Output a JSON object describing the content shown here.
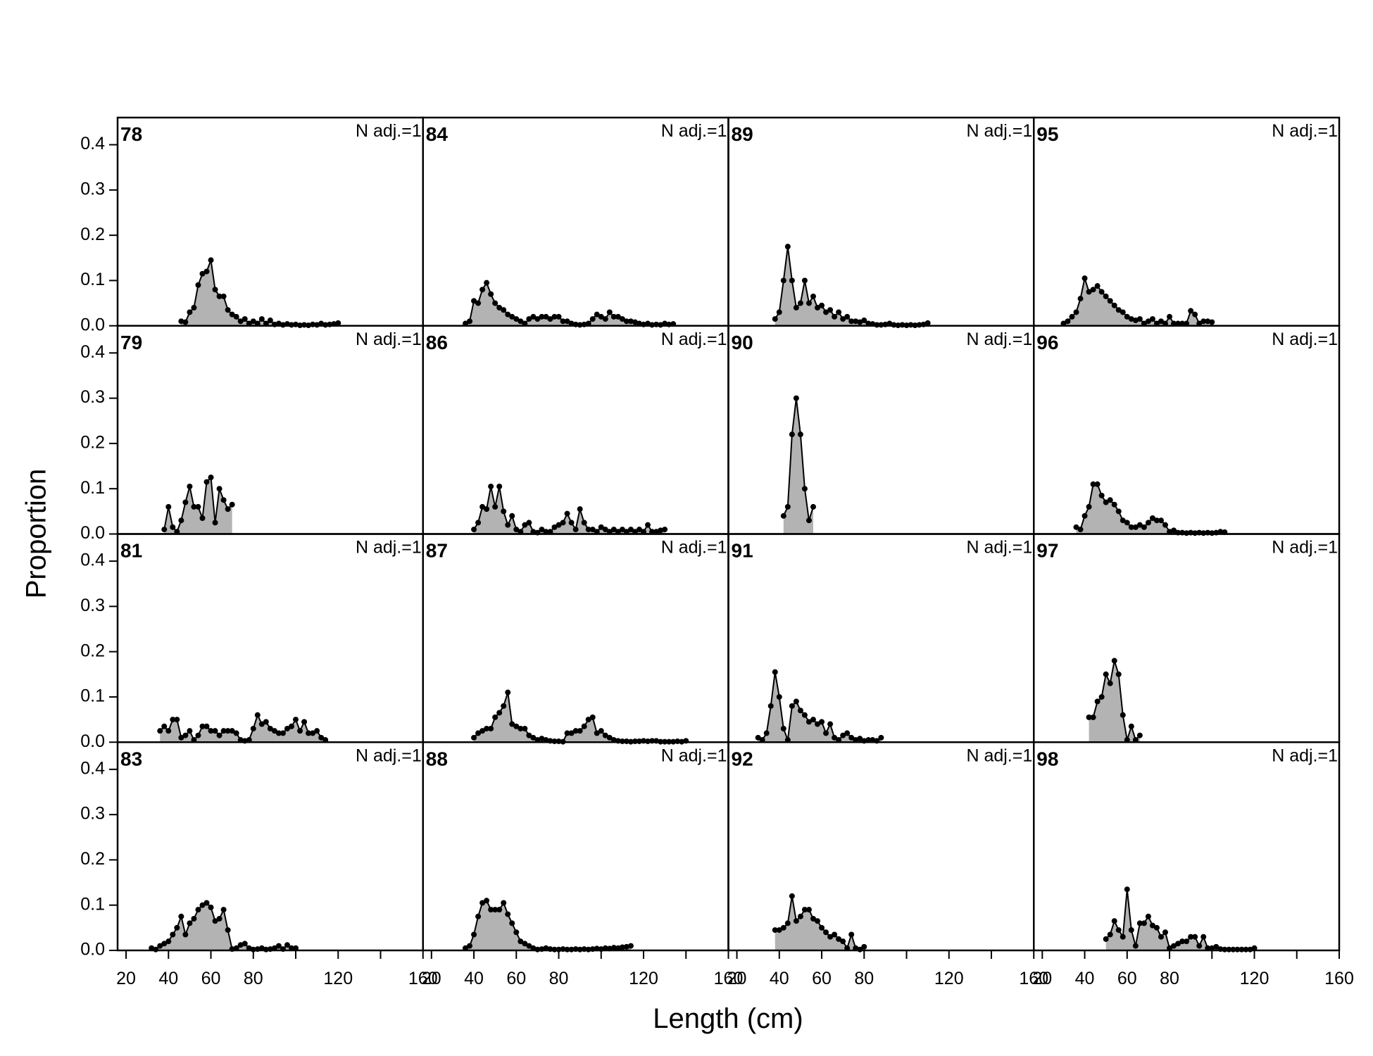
{
  "chart_data": {
    "type": "line",
    "xlabel": "Length (cm)",
    "ylabel": "Proportion",
    "xlim": [
      16,
      160
    ],
    "ylim": [
      0,
      0.46
    ],
    "xticks": [
      20,
      40,
      60,
      80,
      120,
      160
    ],
    "xticks_unlabeled": [
      100,
      140
    ],
    "yticks": [
      {
        "value": 0,
        "label": "0.0"
      },
      0.1,
      0.2,
      0.3,
      0.4
    ],
    "fill_color": "#b3b3b3",
    "line_color": "#000000",
    "panels": [
      {
        "label": "78",
        "annotation": "N adj.=1",
        "x": [
          46,
          48,
          50,
          52,
          54,
          56,
          58,
          60,
          62,
          64,
          66,
          68,
          70,
          72,
          74,
          76,
          78,
          80,
          82,
          84,
          86,
          88,
          90,
          92,
          94,
          96,
          98,
          100,
          102,
          104,
          106,
          108,
          110,
          112,
          114,
          116,
          118,
          120
        ],
        "values": [
          0.01,
          0.008,
          0.03,
          0.04,
          0.09,
          0.115,
          0.12,
          0.145,
          0.08,
          0.065,
          0.065,
          0.035,
          0.025,
          0.02,
          0.01,
          0.015,
          0.005,
          0.01,
          0.005,
          0.015,
          0.005,
          0.012,
          0.003,
          0.005,
          0.002,
          0.004,
          0.002,
          0.003,
          0.001,
          0.002,
          0.001,
          0.003,
          0.002,
          0.005,
          0.002,
          0.003,
          0.004,
          0.006
        ]
      },
      {
        "label": "79",
        "annotation": "N adj.=1",
        "x": [
          38,
          40,
          42,
          44,
          46,
          48,
          50,
          52,
          54,
          56,
          58,
          60,
          62,
          64,
          66,
          68,
          70
        ],
        "values": [
          0.01,
          0.06,
          0.015,
          0.005,
          0.03,
          0.07,
          0.105,
          0.06,
          0.06,
          0.035,
          0.115,
          0.125,
          0.025,
          0.1,
          0.075,
          0.055,
          0.065
        ]
      },
      {
        "label": "81",
        "annotation": "N adj.=1",
        "x": [
          36,
          38,
          40,
          42,
          44,
          46,
          48,
          50,
          52,
          54,
          56,
          58,
          60,
          62,
          64,
          66,
          68,
          70,
          72,
          74,
          76,
          78,
          80,
          82,
          84,
          86,
          88,
          90,
          92,
          94,
          96,
          98,
          100,
          102,
          104,
          106,
          108,
          110,
          112,
          114
        ],
        "values": [
          0.025,
          0.035,
          0.025,
          0.05,
          0.05,
          0.01,
          0.015,
          0.025,
          0.005,
          0.015,
          0.035,
          0.035,
          0.025,
          0.025,
          0.015,
          0.025,
          0.025,
          0.025,
          0.02,
          0.005,
          0.003,
          0.005,
          0.03,
          0.06,
          0.04,
          0.045,
          0.03,
          0.025,
          0.02,
          0.02,
          0.03,
          0.035,
          0.05,
          0.025,
          0.045,
          0.02,
          0.02,
          0.025,
          0.01,
          0.005
        ]
      },
      {
        "label": "83",
        "annotation": "N adj.=1",
        "x": [
          32,
          34,
          36,
          38,
          40,
          42,
          44,
          46,
          48,
          50,
          52,
          54,
          56,
          58,
          60,
          62,
          64,
          66,
          68,
          70,
          72,
          74,
          76,
          78,
          80,
          82,
          84,
          86,
          88,
          90,
          92,
          94,
          96,
          98,
          100
        ],
        "values": [
          0.005,
          0.002,
          0.01,
          0.015,
          0.02,
          0.035,
          0.05,
          0.075,
          0.035,
          0.06,
          0.07,
          0.09,
          0.1,
          0.105,
          0.095,
          0.065,
          0.07,
          0.09,
          0.045,
          0.003,
          0.005,
          0.012,
          0.015,
          0.005,
          0.002,
          0.003,
          0.005,
          0.002,
          0.003,
          0.005,
          0.01,
          0.003,
          0.012,
          0.005,
          0.005
        ]
      },
      {
        "label": "84",
        "annotation": "N adj.=1",
        "x": [
          36,
          38,
          40,
          42,
          44,
          46,
          48,
          50,
          52,
          54,
          56,
          58,
          60,
          62,
          64,
          66,
          68,
          70,
          72,
          74,
          76,
          78,
          80,
          82,
          84,
          86,
          88,
          90,
          92,
          94,
          96,
          98,
          100,
          102,
          104,
          106,
          108,
          110,
          112,
          114,
          116,
          118,
          120,
          122,
          124,
          126,
          128,
          130,
          132,
          134
        ],
        "values": [
          0.005,
          0.01,
          0.055,
          0.05,
          0.08,
          0.095,
          0.07,
          0.05,
          0.04,
          0.035,
          0.025,
          0.02,
          0.015,
          0.01,
          0.005,
          0.015,
          0.02,
          0.015,
          0.02,
          0.02,
          0.015,
          0.02,
          0.02,
          0.01,
          0.01,
          0.005,
          0.003,
          0.002,
          0.003,
          0.005,
          0.015,
          0.025,
          0.02,
          0.015,
          0.03,
          0.02,
          0.02,
          0.015,
          0.01,
          0.01,
          0.008,
          0.005,
          0.003,
          0.005,
          0.002,
          0.003,
          0.002,
          0.005,
          0.003,
          0.004
        ]
      },
      {
        "label": "86",
        "annotation": "N adj.=1",
        "x": [
          40,
          42,
          44,
          46,
          48,
          50,
          52,
          54,
          56,
          58,
          60,
          62,
          64,
          66,
          68,
          70,
          72,
          74,
          76,
          78,
          80,
          82,
          84,
          86,
          88,
          90,
          92,
          94,
          96,
          98,
          100,
          102,
          104,
          106,
          108,
          110,
          112,
          114,
          116,
          118,
          120,
          122,
          124,
          126,
          128,
          130
        ],
        "values": [
          0.01,
          0.025,
          0.06,
          0.055,
          0.105,
          0.06,
          0.105,
          0.05,
          0.02,
          0.04,
          0.01,
          0.005,
          0.02,
          0.025,
          0.005,
          0.003,
          0.01,
          0.005,
          0.005,
          0.015,
          0.02,
          0.025,
          0.045,
          0.025,
          0.01,
          0.055,
          0.025,
          0.01,
          0.01,
          0.005,
          0.015,
          0.01,
          0.005,
          0.01,
          0.005,
          0.01,
          0.005,
          0.01,
          0.005,
          0.01,
          0.005,
          0.02,
          0.005,
          0.005,
          0.008,
          0.01
        ]
      },
      {
        "label": "87",
        "annotation": "N adj.=1",
        "x": [
          40,
          42,
          44,
          46,
          48,
          50,
          52,
          54,
          56,
          58,
          60,
          62,
          64,
          66,
          68,
          70,
          72,
          74,
          76,
          78,
          80,
          82,
          84,
          86,
          88,
          90,
          92,
          94,
          96,
          98,
          100,
          102,
          104,
          106,
          108,
          110,
          112,
          114,
          116,
          118,
          120,
          122,
          124,
          126,
          128,
          130,
          132,
          134,
          136,
          138,
          140
        ],
        "values": [
          0.01,
          0.02,
          0.025,
          0.03,
          0.03,
          0.055,
          0.065,
          0.08,
          0.11,
          0.04,
          0.035,
          0.03,
          0.03,
          0.015,
          0.01,
          0.005,
          0.008,
          0.005,
          0.003,
          0.002,
          0.002,
          0.001,
          0.02,
          0.02,
          0.025,
          0.025,
          0.035,
          0.05,
          0.055,
          0.02,
          0.025,
          0.015,
          0.01,
          0.005,
          0.003,
          0.002,
          0.002,
          0.001,
          0.002,
          0.002,
          0.003,
          0.002,
          0.003,
          0.003,
          0.001,
          0.001,
          0.001,
          0.001,
          0.002,
          0.001,
          0.003
        ]
      },
      {
        "label": "88",
        "annotation": "N adj.=1",
        "x": [
          36,
          38,
          40,
          42,
          44,
          46,
          48,
          50,
          52,
          54,
          56,
          58,
          60,
          62,
          64,
          66,
          68,
          70,
          72,
          74,
          76,
          78,
          80,
          82,
          84,
          86,
          88,
          90,
          92,
          94,
          96,
          98,
          100,
          102,
          104,
          106,
          108,
          110,
          112,
          114
        ],
        "values": [
          0.005,
          0.01,
          0.035,
          0.075,
          0.105,
          0.11,
          0.09,
          0.09,
          0.09,
          0.105,
          0.08,
          0.06,
          0.04,
          0.02,
          0.015,
          0.01,
          0.005,
          0.002,
          0.003,
          0.005,
          0.003,
          0.002,
          0.002,
          0.003,
          0.002,
          0.002,
          0.003,
          0.002,
          0.003,
          0.002,
          0.003,
          0.004,
          0.003,
          0.005,
          0.004,
          0.006,
          0.005,
          0.007,
          0.008,
          0.01
        ]
      },
      {
        "label": "89",
        "annotation": "N adj.=1",
        "x": [
          38,
          40,
          42,
          44,
          46,
          48,
          50,
          52,
          54,
          56,
          58,
          60,
          62,
          64,
          66,
          68,
          70,
          72,
          74,
          76,
          78,
          80,
          82,
          84,
          86,
          88,
          90,
          92,
          94,
          96,
          98,
          100,
          102,
          104,
          106,
          108,
          110
        ],
        "values": [
          0.015,
          0.03,
          0.1,
          0.175,
          0.1,
          0.04,
          0.05,
          0.1,
          0.05,
          0.065,
          0.04,
          0.045,
          0.03,
          0.035,
          0.02,
          0.03,
          0.015,
          0.02,
          0.01,
          0.01,
          0.008,
          0.012,
          0.005,
          0.004,
          0.002,
          0.002,
          0.003,
          0.005,
          0.002,
          0.001,
          0.002,
          0.001,
          0.002,
          0.001,
          0.002,
          0.003,
          0.006
        ]
      },
      {
        "label": "90",
        "annotation": "N adj.=1",
        "x": [
          42,
          44,
          46,
          48,
          50,
          52,
          54,
          56
        ],
        "values": [
          0.04,
          0.06,
          0.22,
          0.3,
          0.22,
          0.1,
          0.03,
          0.06
        ]
      },
      {
        "label": "91",
        "annotation": "N adj.=1",
        "x": [
          30,
          32,
          34,
          36,
          38,
          40,
          42,
          44,
          46,
          48,
          50,
          52,
          54,
          56,
          58,
          60,
          62,
          64,
          66,
          68,
          70,
          72,
          74,
          76,
          78,
          80,
          82,
          84,
          86,
          88
        ],
        "values": [
          0.01,
          0.005,
          0.02,
          0.08,
          0.155,
          0.1,
          0.03,
          0.005,
          0.08,
          0.09,
          0.07,
          0.06,
          0.045,
          0.05,
          0.04,
          0.045,
          0.02,
          0.04,
          0.01,
          0.005,
          0.015,
          0.02,
          0.01,
          0.005,
          0.008,
          0.003,
          0.005,
          0.005,
          0.003,
          0.01
        ]
      },
      {
        "label": "92",
        "annotation": "N adj.=1",
        "x": [
          38,
          40,
          42,
          44,
          46,
          48,
          50,
          52,
          54,
          56,
          58,
          60,
          62,
          64,
          66,
          68,
          70,
          72,
          74,
          76,
          78,
          80
        ],
        "values": [
          0.045,
          0.045,
          0.05,
          0.06,
          0.12,
          0.065,
          0.075,
          0.09,
          0.09,
          0.07,
          0.065,
          0.05,
          0.04,
          0.03,
          0.035,
          0.025,
          0.02,
          0.005,
          0.035,
          0.005,
          0.002,
          0.008
        ]
      },
      {
        "label": "95",
        "annotation": "N adj.=1",
        "x": [
          30,
          32,
          34,
          36,
          38,
          40,
          42,
          44,
          46,
          48,
          50,
          52,
          54,
          56,
          58,
          60,
          62,
          64,
          66,
          68,
          70,
          72,
          74,
          76,
          78,
          80,
          82,
          84,
          86,
          88,
          90,
          92,
          94,
          96,
          98,
          100
        ],
        "values": [
          0.005,
          0.01,
          0.02,
          0.03,
          0.06,
          0.105,
          0.075,
          0.08,
          0.088,
          0.075,
          0.065,
          0.055,
          0.045,
          0.035,
          0.03,
          0.02,
          0.015,
          0.012,
          0.015,
          0.005,
          0.01,
          0.015,
          0.005,
          0.01,
          0.005,
          0.02,
          0.005,
          0.005,
          0.005,
          0.005,
          0.033,
          0.025,
          0.005,
          0.01,
          0.01,
          0.008
        ]
      },
      {
        "label": "96",
        "annotation": "N adj.=1",
        "x": [
          36,
          38,
          40,
          42,
          44,
          46,
          48,
          50,
          52,
          54,
          56,
          58,
          60,
          62,
          64,
          66,
          68,
          70,
          72,
          74,
          76,
          78,
          80,
          82,
          84,
          86,
          88,
          90,
          92,
          94,
          96,
          98,
          100,
          102,
          104,
          106
        ],
        "values": [
          0.015,
          0.01,
          0.04,
          0.06,
          0.11,
          0.11,
          0.085,
          0.07,
          0.075,
          0.065,
          0.05,
          0.03,
          0.025,
          0.015,
          0.015,
          0.02,
          0.015,
          0.025,
          0.035,
          0.03,
          0.03,
          0.02,
          0.005,
          0.008,
          0.003,
          0.003,
          0.002,
          0.003,
          0.002,
          0.003,
          0.002,
          0.003,
          0.002,
          0.003,
          0.005,
          0.004
        ]
      },
      {
        "label": "97",
        "annotation": "N adj.=1",
        "x": [
          42,
          44,
          46,
          48,
          50,
          52,
          54,
          56,
          58,
          60,
          62,
          64,
          66
        ],
        "values": [
          0.055,
          0.055,
          0.09,
          0.1,
          0.15,
          0.13,
          0.18,
          0.15,
          0.06,
          0.005,
          0.035,
          0.005,
          0.015
        ]
      },
      {
        "label": "98",
        "annotation": "N adj.=1",
        "x": [
          50,
          52,
          54,
          56,
          58,
          60,
          62,
          64,
          66,
          68,
          70,
          72,
          74,
          76,
          78,
          80,
          82,
          84,
          86,
          88,
          90,
          92,
          94,
          96,
          98,
          100,
          102,
          104,
          106,
          108,
          110,
          112,
          114,
          116,
          118,
          120
        ],
        "values": [
          0.025,
          0.035,
          0.065,
          0.045,
          0.03,
          0.135,
          0.045,
          0.01,
          0.06,
          0.06,
          0.075,
          0.055,
          0.05,
          0.03,
          0.04,
          0.005,
          0.01,
          0.015,
          0.02,
          0.02,
          0.03,
          0.03,
          0.01,
          0.03,
          0.005,
          0.005,
          0.008,
          0.003,
          0.002,
          0.002,
          0.002,
          0.002,
          0.002,
          0.002,
          0.002,
          0.005
        ]
      }
    ]
  }
}
